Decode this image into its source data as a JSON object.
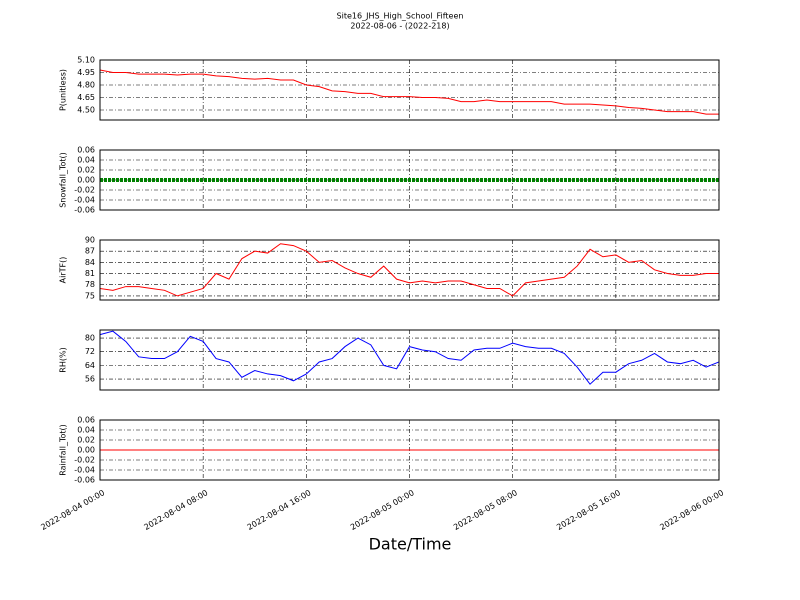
{
  "chart_data": [
    {
      "type": "line",
      "title": "Site16_JHS_High_School_Fifteen",
      "subtitle": "2022-08-06 - (2022-218)",
      "ylabel": "P(unitless)",
      "color": "#ff0000",
      "xlim": [
        "2022-08-04 00:00",
        "2022-08-06 00:00"
      ],
      "ylim": [
        4.38,
        5.1
      ],
      "yticks": [
        {
          "value": 4.5,
          "label": "4.50"
        },
        {
          "value": 4.65,
          "label": "4.65"
        },
        {
          "value": 4.8,
          "label": "4.80"
        },
        {
          "value": 4.95,
          "label": "4.95"
        },
        {
          "value": 5.1,
          "label": "5.10"
        }
      ],
      "grid": true,
      "x": [
        "2022-08-04 00:00",
        "2022-08-04 01:00",
        "2022-08-04 02:00",
        "2022-08-04 03:00",
        "2022-08-04 04:00",
        "2022-08-04 05:00",
        "2022-08-04 06:00",
        "2022-08-04 07:00",
        "2022-08-04 08:00",
        "2022-08-04 09:00",
        "2022-08-04 10:00",
        "2022-08-04 11:00",
        "2022-08-04 12:00",
        "2022-08-04 13:00",
        "2022-08-04 14:00",
        "2022-08-04 15:00",
        "2022-08-04 16:00",
        "2022-08-04 17:00",
        "2022-08-04 18:00",
        "2022-08-04 19:00",
        "2022-08-04 20:00",
        "2022-08-04 21:00",
        "2022-08-04 22:00",
        "2022-08-04 23:00",
        "2022-08-05 00:00",
        "2022-08-05 01:00",
        "2022-08-05 02:00",
        "2022-08-05 03:00",
        "2022-08-05 04:00",
        "2022-08-05 05:00",
        "2022-08-05 06:00",
        "2022-08-05 07:00",
        "2022-08-05 08:00",
        "2022-08-05 09:00",
        "2022-08-05 10:00",
        "2022-08-05 11:00",
        "2022-08-05 12:00",
        "2022-08-05 13:00",
        "2022-08-05 14:00",
        "2022-08-05 15:00",
        "2022-08-05 16:00",
        "2022-08-05 17:00",
        "2022-08-05 18:00",
        "2022-08-05 19:00",
        "2022-08-05 20:00",
        "2022-08-05 21:00",
        "2022-08-05 22:00",
        "2022-08-05 23:00",
        "2022-08-06 00:00"
      ],
      "values": [
        4.98,
        4.95,
        4.95,
        4.93,
        4.93,
        4.93,
        4.92,
        4.93,
        4.93,
        4.91,
        4.9,
        4.88,
        4.87,
        4.88,
        4.86,
        4.86,
        4.8,
        4.78,
        4.73,
        4.72,
        4.7,
        4.7,
        4.66,
        4.66,
        4.66,
        4.65,
        4.65,
        4.64,
        4.6,
        4.6,
        4.62,
        4.6,
        4.6,
        4.6,
        4.6,
        4.6,
        4.57,
        4.57,
        4.57,
        4.56,
        4.55,
        4.53,
        4.52,
        4.5,
        4.48,
        4.48,
        4.48,
        4.45,
        4.45
      ]
    },
    {
      "type": "line",
      "ylabel": "Snowfall_Tot()",
      "color": "#008000",
      "xlim": [
        "2022-08-04 00:00",
        "2022-08-06 00:00"
      ],
      "ylim": [
        -0.06,
        0.06
      ],
      "yticks": [
        -0.06,
        -0.04,
        -0.02,
        {
          "value": 0,
          "label": "0.00"
        },
        0.02,
        0.04,
        0.06
      ],
      "grid": true,
      "x": [
        "2022-08-04 00:00",
        "2022-08-04 01:00",
        "2022-08-04 02:00",
        "2022-08-04 03:00",
        "2022-08-04 04:00",
        "2022-08-04 05:00",
        "2022-08-04 06:00",
        "2022-08-04 07:00",
        "2022-08-04 08:00",
        "2022-08-04 09:00",
        "2022-08-04 10:00",
        "2022-08-04 11:00",
        "2022-08-04 12:00",
        "2022-08-04 13:00",
        "2022-08-04 14:00",
        "2022-08-04 15:00",
        "2022-08-04 16:00",
        "2022-08-04 17:00",
        "2022-08-04 18:00",
        "2022-08-04 19:00",
        "2022-08-04 20:00",
        "2022-08-04 21:00",
        "2022-08-04 22:00",
        "2022-08-04 23:00",
        "2022-08-05 00:00",
        "2022-08-05 01:00",
        "2022-08-05 02:00",
        "2022-08-05 03:00",
        "2022-08-05 04:00",
        "2022-08-05 05:00",
        "2022-08-05 06:00",
        "2022-08-05 07:00",
        "2022-08-05 08:00",
        "2022-08-05 09:00",
        "2022-08-05 10:00",
        "2022-08-05 11:00",
        "2022-08-05 12:00",
        "2022-08-05 13:00",
        "2022-08-05 14:00",
        "2022-08-05 15:00",
        "2022-08-05 16:00",
        "2022-08-05 17:00",
        "2022-08-05 18:00",
        "2022-08-05 19:00",
        "2022-08-05 20:00",
        "2022-08-05 21:00",
        "2022-08-05 22:00",
        "2022-08-05 23:00",
        "2022-08-06 00:00"
      ],
      "values": [
        0,
        0,
        0,
        0,
        0,
        0,
        0,
        0,
        0,
        0,
        0,
        0,
        0,
        0,
        0,
        0,
        0,
        0,
        0,
        0,
        0,
        0,
        0,
        0,
        0,
        0,
        0,
        0,
        0,
        0,
        0,
        0,
        0,
        0,
        0,
        0,
        0,
        0,
        0,
        0,
        0,
        0,
        0,
        0,
        0,
        0,
        0,
        0,
        0
      ]
    },
    {
      "type": "line",
      "ylabel": "AirTF()",
      "color": "#ff0000",
      "xlim": [
        "2022-08-04 00:00",
        "2022-08-06 00:00"
      ],
      "ylim": [
        73.9,
        90
      ],
      "yticks": [
        75,
        78,
        81,
        84,
        87,
        90
      ],
      "grid": true,
      "x": [
        "2022-08-04 00:00",
        "2022-08-04 01:00",
        "2022-08-04 02:00",
        "2022-08-04 03:00",
        "2022-08-04 04:00",
        "2022-08-04 05:00",
        "2022-08-04 06:00",
        "2022-08-04 07:00",
        "2022-08-04 08:00",
        "2022-08-04 09:00",
        "2022-08-04 10:00",
        "2022-08-04 11:00",
        "2022-08-04 12:00",
        "2022-08-04 13:00",
        "2022-08-04 14:00",
        "2022-08-04 15:00",
        "2022-08-04 16:00",
        "2022-08-04 17:00",
        "2022-08-04 18:00",
        "2022-08-04 19:00",
        "2022-08-04 20:00",
        "2022-08-04 21:00",
        "2022-08-04 22:00",
        "2022-08-04 23:00",
        "2022-08-05 00:00",
        "2022-08-05 01:00",
        "2022-08-05 02:00",
        "2022-08-05 03:00",
        "2022-08-05 04:00",
        "2022-08-05 05:00",
        "2022-08-05 06:00",
        "2022-08-05 07:00",
        "2022-08-05 08:00",
        "2022-08-05 09:00",
        "2022-08-05 10:00",
        "2022-08-05 11:00",
        "2022-08-05 12:00",
        "2022-08-05 13:00",
        "2022-08-05 14:00",
        "2022-08-05 15:00",
        "2022-08-05 16:00",
        "2022-08-05 17:00",
        "2022-08-05 18:00",
        "2022-08-05 19:00",
        "2022-08-05 20:00",
        "2022-08-05 21:00",
        "2022-08-05 22:00",
        "2022-08-05 23:00",
        "2022-08-06 00:00"
      ],
      "values": [
        77,
        76.5,
        77.5,
        77.5,
        77,
        76.5,
        75,
        76,
        77,
        81,
        79.5,
        85,
        87,
        86.5,
        89,
        88.5,
        87,
        84,
        84.5,
        82.5,
        81,
        80,
        83,
        79.5,
        78.5,
        79,
        78.5,
        79,
        79,
        78,
        77,
        77,
        75,
        78.5,
        79,
        79.5,
        80,
        83,
        87.5,
        85.5,
        86,
        84,
        84.5,
        82,
        81,
        80.5,
        80.5,
        81,
        81
      ]
    },
    {
      "type": "line",
      "ylabel": "RH(%)",
      "color": "#0000ff",
      "xlim": [
        "2022-08-04 00:00",
        "2022-08-06 00:00"
      ],
      "ylim": [
        49.6,
        84.7
      ],
      "yticks": [
        56,
        64,
        72,
        80
      ],
      "grid": true,
      "x": [
        "2022-08-04 00:00",
        "2022-08-04 01:00",
        "2022-08-04 02:00",
        "2022-08-04 03:00",
        "2022-08-04 04:00",
        "2022-08-04 05:00",
        "2022-08-04 06:00",
        "2022-08-04 07:00",
        "2022-08-04 08:00",
        "2022-08-04 09:00",
        "2022-08-04 10:00",
        "2022-08-04 11:00",
        "2022-08-04 12:00",
        "2022-08-04 13:00",
        "2022-08-04 14:00",
        "2022-08-04 15:00",
        "2022-08-04 16:00",
        "2022-08-04 17:00",
        "2022-08-04 18:00",
        "2022-08-04 19:00",
        "2022-08-04 20:00",
        "2022-08-04 21:00",
        "2022-08-04 22:00",
        "2022-08-04 23:00",
        "2022-08-05 00:00",
        "2022-08-05 01:00",
        "2022-08-05 02:00",
        "2022-08-05 03:00",
        "2022-08-05 04:00",
        "2022-08-05 05:00",
        "2022-08-05 06:00",
        "2022-08-05 07:00",
        "2022-08-05 08:00",
        "2022-08-05 09:00",
        "2022-08-05 10:00",
        "2022-08-05 11:00",
        "2022-08-05 12:00",
        "2022-08-05 13:00",
        "2022-08-05 14:00",
        "2022-08-05 15:00",
        "2022-08-05 16:00",
        "2022-08-05 17:00",
        "2022-08-05 18:00",
        "2022-08-05 19:00",
        "2022-08-05 20:00",
        "2022-08-05 21:00",
        "2022-08-05 22:00",
        "2022-08-05 23:00",
        "2022-08-06 00:00"
      ],
      "values": [
        82,
        84,
        78,
        69,
        68,
        68,
        72,
        81,
        78,
        68,
        66,
        57,
        61,
        59,
        58,
        55,
        59,
        66,
        68,
        75,
        80,
        76,
        64,
        62,
        75,
        73,
        72,
        68,
        67,
        73,
        74,
        74,
        77,
        75,
        74,
        74,
        71,
        63,
        53,
        60,
        60,
        65,
        67,
        71,
        66,
        65,
        67,
        63,
        66
      ]
    },
    {
      "type": "line",
      "ylabel": "Rainfall_Tot()",
      "xlabel": "Date/Time",
      "color": "#ff0000",
      "xlim": [
        "2022-08-04 00:00",
        "2022-08-06 00:00"
      ],
      "ylim": [
        -0.06,
        0.06
      ],
      "xticks": [
        "2022-08-04 00:00",
        "2022-08-04 08:00",
        "2022-08-04 16:00",
        "2022-08-05 00:00",
        "2022-08-05 08:00",
        "2022-08-05 16:00",
        "2022-08-06 00:00"
      ],
      "yticks": [
        -0.06,
        -0.04,
        -0.02,
        {
          "value": 0,
          "label": "0.00"
        },
        0.02,
        0.04,
        0.06
      ],
      "grid": true,
      "x": [
        "2022-08-04 00:00",
        "2022-08-04 01:00",
        "2022-08-04 02:00",
        "2022-08-04 03:00",
        "2022-08-04 04:00",
        "2022-08-04 05:00",
        "2022-08-04 06:00",
        "2022-08-04 07:00",
        "2022-08-04 08:00",
        "2022-08-04 09:00",
        "2022-08-04 10:00",
        "2022-08-04 11:00",
        "2022-08-04 12:00",
        "2022-08-04 13:00",
        "2022-08-04 14:00",
        "2022-08-04 15:00",
        "2022-08-04 16:00",
        "2022-08-04 17:00",
        "2022-08-04 18:00",
        "2022-08-04 19:00",
        "2022-08-04 20:00",
        "2022-08-04 21:00",
        "2022-08-04 22:00",
        "2022-08-04 23:00",
        "2022-08-05 00:00",
        "2022-08-05 01:00",
        "2022-08-05 02:00",
        "2022-08-05 03:00",
        "2022-08-05 04:00",
        "2022-08-05 05:00",
        "2022-08-05 06:00",
        "2022-08-05 07:00",
        "2022-08-05 08:00",
        "2022-08-05 09:00",
        "2022-08-05 10:00",
        "2022-08-05 11:00",
        "2022-08-05 12:00",
        "2022-08-05 13:00",
        "2022-08-05 14:00",
        "2022-08-05 15:00",
        "2022-08-05 16:00",
        "2022-08-05 17:00",
        "2022-08-05 18:00",
        "2022-08-05 19:00",
        "2022-08-05 20:00",
        "2022-08-05 21:00",
        "2022-08-05 22:00",
        "2022-08-05 23:00",
        "2022-08-06 00:00"
      ],
      "values": [
        0,
        0,
        0,
        0,
        0,
        0,
        0,
        0,
        0,
        0,
        0,
        0,
        0,
        0,
        0,
        0,
        0,
        0,
        0,
        0,
        0,
        0,
        0,
        0,
        0,
        0,
        0,
        0,
        0,
        0,
        0,
        0,
        0,
        0,
        0,
        0,
        0,
        0,
        0,
        0,
        0,
        0,
        0,
        0,
        0,
        0,
        0,
        0,
        0
      ]
    }
  ]
}
